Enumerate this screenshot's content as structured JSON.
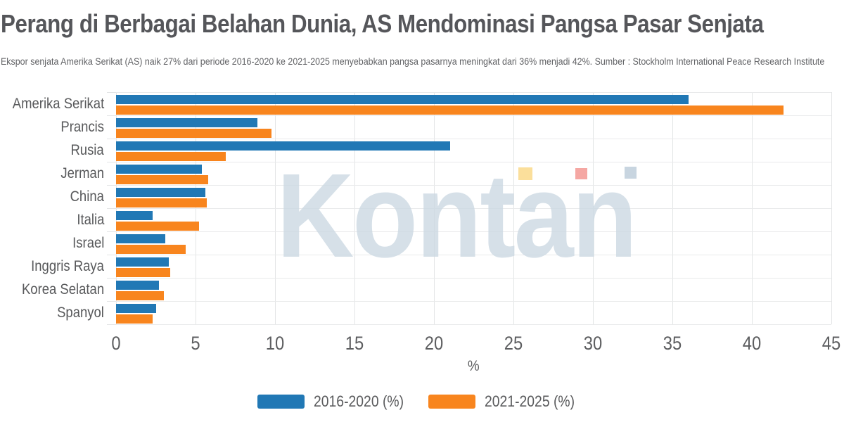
{
  "header": {
    "title": "Perang di Berbagai Belahan Dunia, AS Mendominasi Pangsa Pasar Senjata",
    "subtitle": "Ekspor senjata Amerika Serikat (AS) naik 27% dari periode 2016-2020 ke 2021-2025 menyebabkan pangsa pasarnya meningkat dari 36% menjadi 42%. Sumber : Stockholm International Peace Research Institute"
  },
  "watermark": {
    "text": "Kontan",
    "text_color": "#ccd9e3",
    "square_colors": {
      "yellow": "#fbdf9b",
      "red": "#f5a7a3",
      "gray": "#c8d5e0"
    }
  },
  "chart_data": {
    "type": "bar",
    "orientation": "horizontal",
    "title": "Perang di Berbagai Belahan Dunia, AS Mendominasi Pangsa Pasar Senjata",
    "categories": [
      "Amerika Serikat",
      "Prancis",
      "Rusia",
      "Jerman",
      "China",
      "Italia",
      "Israel",
      "Inggris Raya",
      "Korea Selatan",
      "Spanyol"
    ],
    "series": [
      {
        "name": "2016-2020 (%)",
        "color": "#2178b5",
        "values": [
          36,
          8.9,
          21,
          5.4,
          5.6,
          2.3,
          3.1,
          3.3,
          2.7,
          2.5
        ]
      },
      {
        "name": "2021-2025 (%)",
        "color": "#f8851e",
        "values": [
          42,
          9.8,
          6.9,
          5.8,
          5.7,
          5.2,
          4.4,
          3.4,
          3.0,
          2.3
        ]
      }
    ],
    "xlabel": "%",
    "ylabel": "",
    "xlim": [
      0,
      45
    ],
    "xticks": [
      0,
      5,
      10,
      15,
      20,
      25,
      30,
      35,
      40,
      45
    ],
    "grid": true,
    "legend_position": "bottom"
  }
}
